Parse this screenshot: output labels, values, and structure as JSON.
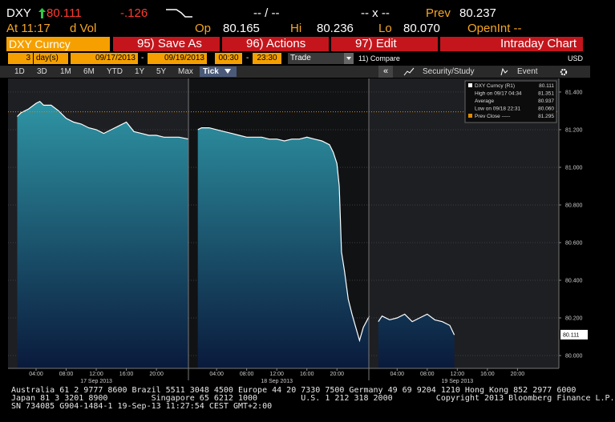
{
  "header": {
    "ticker": "DXY",
    "last": "80.111",
    "change": "-.126",
    "bid_ask": "-- / --",
    "size": "-- x --",
    "prev_label": "Prev",
    "prev": "80.237",
    "time": "At 11:17",
    "vol": "d Vol",
    "open_label": "Op",
    "open": "80.165",
    "high_label": "Hi",
    "high": "80.236",
    "low_label": "Lo",
    "low": "80.070",
    "openint": "OpenInt --"
  },
  "toolbar": {
    "security": "DXY Curncy",
    "buttons": [
      "95) Save As",
      "96) Actions",
      "97) Edit"
    ],
    "title": "Intraday Chart"
  },
  "params": {
    "days": "3",
    "days_unit": "day(s)",
    "start": "09/17/2013",
    "end": "09/19/2013",
    "range_sep": "-",
    "time_start": "00:30",
    "time_end": "23:30",
    "field": "Trade",
    "compare": "11) Compare",
    "currency": "USD"
  },
  "tabs": [
    "1D",
    "3D",
    "1M",
    "6M",
    "YTD",
    "1Y",
    "5Y",
    "Max",
    "Tick"
  ],
  "study": "Security/Study",
  "event": "Event",
  "chart_data": {
    "type": "area",
    "color": "#ffffff",
    "fill_top": "#2f97a6",
    "fill_bottom": "#0a1a3c",
    "x": [
      1.5,
      2,
      3,
      4,
      4.5,
      5,
      6,
      7,
      8,
      9,
      10,
      11,
      12,
      13,
      14,
      15,
      16,
      17,
      18,
      19,
      20,
      21,
      22,
      23,
      24.3,
      null,
      25.5,
      26,
      27,
      28,
      29,
      30,
      31,
      32,
      33,
      34,
      35,
      36,
      37,
      38,
      39,
      40,
      41,
      42,
      43,
      43.5,
      44,
      44.3,
      44.6,
      45,
      45.5,
      46,
      46.5,
      47,
      47.5,
      48.3,
      null,
      49.5,
      50,
      51,
      52,
      53,
      54,
      55,
      56,
      57,
      58,
      59,
      59.6
    ],
    "values": [
      81.27,
      81.29,
      81.31,
      81.34,
      81.35,
      81.33,
      81.33,
      81.3,
      81.26,
      81.24,
      81.23,
      81.21,
      81.2,
      81.18,
      81.2,
      81.22,
      81.24,
      81.19,
      81.18,
      81.17,
      81.17,
      81.16,
      81.16,
      81.16,
      81.15,
      null,
      81.2,
      81.21,
      81.21,
      81.2,
      81.19,
      81.18,
      81.17,
      81.16,
      81.16,
      81.16,
      81.15,
      81.15,
      81.14,
      81.15,
      81.15,
      81.16,
      81.15,
      81.14,
      81.12,
      81.08,
      81.02,
      80.9,
      80.55,
      80.45,
      80.3,
      80.22,
      80.15,
      80.08,
      80.15,
      80.21,
      null,
      80.18,
      80.21,
      80.19,
      80.2,
      80.22,
      80.18,
      80.2,
      80.22,
      80.19,
      80.18,
      80.16,
      80.11
    ],
    "xlim": [
      0.27,
      73.5
    ],
    "ylim": [
      79.932,
      81.472
    ],
    "xticks": [
      {
        "value": 4,
        "label": "04:00"
      },
      {
        "value": 8,
        "label": "08:00"
      },
      {
        "value": 12,
        "label": "12:00"
      },
      {
        "value": 16,
        "label": "16:00"
      },
      {
        "value": 20,
        "label": "20:00"
      },
      {
        "value": 28,
        "label": "04:00"
      },
      {
        "value": 32,
        "label": "08:00"
      },
      {
        "value": 36,
        "label": "12:00"
      },
      {
        "value": 40,
        "label": "16:00"
      },
      {
        "value": 44,
        "label": "20:00"
      },
      {
        "value": 52,
        "label": "04:00"
      },
      {
        "value": 56,
        "label": "08:00"
      },
      {
        "value": 60,
        "label": "12:00"
      },
      {
        "value": 64,
        "label": "16:00"
      },
      {
        "value": 68,
        "label": "20:00"
      }
    ],
    "date_ticks": [
      {
        "value": 12,
        "label": "17 Sep 2013"
      },
      {
        "value": 36,
        "label": "18 Sep 2013"
      },
      {
        "value": 60,
        "label": "19 Sep 2013"
      }
    ],
    "yticks": [
      {
        "value": 80.0,
        "label": "80.000"
      },
      {
        "value": 80.2,
        "label": "80.200"
      },
      {
        "value": 80.4,
        "label": "80.400"
      },
      {
        "value": 80.6,
        "label": "80.600"
      },
      {
        "value": 80.8,
        "label": "80.800"
      },
      {
        "value": 81.0,
        "label": "81.000"
      },
      {
        "value": 81.2,
        "label": "81.200"
      },
      {
        "value": 81.4,
        "label": "81.400"
      }
    ],
    "grid": true,
    "prev_close": 81.295,
    "prev_close_color": "#e08a00",
    "last_price": {
      "value": 80.111,
      "label": "80.111"
    },
    "legend": [
      {
        "label": "DXY Curncy (R1)",
        "value": "80.111"
      },
      {
        "label": "High on 09/17 04:34",
        "value": "81.351"
      },
      {
        "label": "Average",
        "value": "80.937"
      },
      {
        "label": "Low on 09/18 22:31",
        "value": "80.060"
      },
      {
        "label": "Prev Close -----",
        "value": "81.295"
      }
    ]
  },
  "footer": {
    "lines": [
      "Australia 61 2 9777 8600 Brazil 5511 3048 4500 Europe 44 20 7330 7500 Germany 49 69 9204 1210 Hong Kong 852 2977 6000",
      "Japan 81 3 3201 8900         Singapore 65 6212 1000         U.S. 1 212 318 2000         Copyright 2013 Bloomberg Finance L.P.",
      "SN 734085 G904-1484-1 19-Sep-13 11:27:54 CEST GMT+2:00"
    ]
  }
}
